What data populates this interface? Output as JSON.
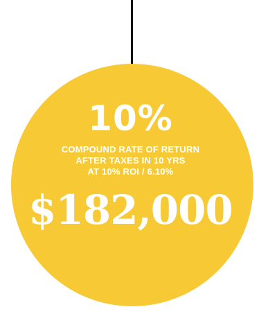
{
  "colors": {
    "circle_fill": "#f6c935",
    "text": "#ffffff",
    "line": "#111111",
    "background": "#ffffff"
  },
  "stat": {
    "rate": "10%",
    "description_lines": [
      "COMPOUND RATE OF RETURN",
      "AFTER TAXES IN 10 YRS",
      "AT 10% ROI / 6.10%"
    ],
    "amount": "$182,000"
  }
}
